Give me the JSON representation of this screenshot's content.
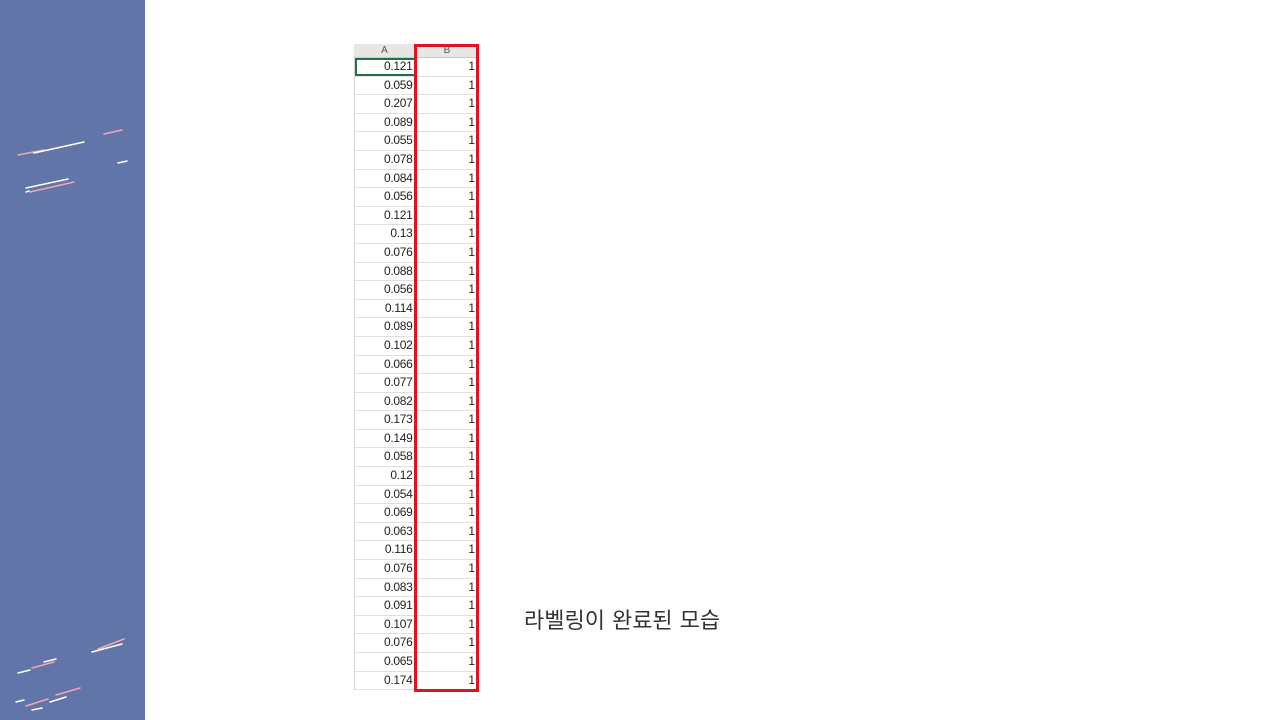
{
  "sheet": {
    "columns": [
      "A",
      "B"
    ],
    "rows": [
      [
        "0.121",
        "1"
      ],
      [
        "0.059",
        "1"
      ],
      [
        "0.207",
        "1"
      ],
      [
        "0.089",
        "1"
      ],
      [
        "0.055",
        "1"
      ],
      [
        "0.078",
        "1"
      ],
      [
        "0.084",
        "1"
      ],
      [
        "0.056",
        "1"
      ],
      [
        "0.121",
        "1"
      ],
      [
        "0.13",
        "1"
      ],
      [
        "0.076",
        "1"
      ],
      [
        "0.088",
        "1"
      ],
      [
        "0.056",
        "1"
      ],
      [
        "0.114",
        "1"
      ],
      [
        "0.089",
        "1"
      ],
      [
        "0.102",
        "1"
      ],
      [
        "0.066",
        "1"
      ],
      [
        "0.077",
        "1"
      ],
      [
        "0.082",
        "1"
      ],
      [
        "0.173",
        "1"
      ],
      [
        "0.149",
        "1"
      ],
      [
        "0.058",
        "1"
      ],
      [
        "0.12",
        "1"
      ],
      [
        "0.054",
        "1"
      ],
      [
        "0.069",
        "1"
      ],
      [
        "0.063",
        "1"
      ],
      [
        "0.116",
        "1"
      ],
      [
        "0.076",
        "1"
      ],
      [
        "0.083",
        "1"
      ],
      [
        "0.091",
        "1"
      ],
      [
        "0.107",
        "1"
      ],
      [
        "0.076",
        "1"
      ],
      [
        "0.065",
        "1"
      ],
      [
        "0.174",
        "1"
      ]
    ]
  },
  "caption": "라벨링이 완료된 모습",
  "colors": {
    "side_panel": "#6175a8",
    "highlight": "#e0141e",
    "selected_cell": "#217346"
  }
}
